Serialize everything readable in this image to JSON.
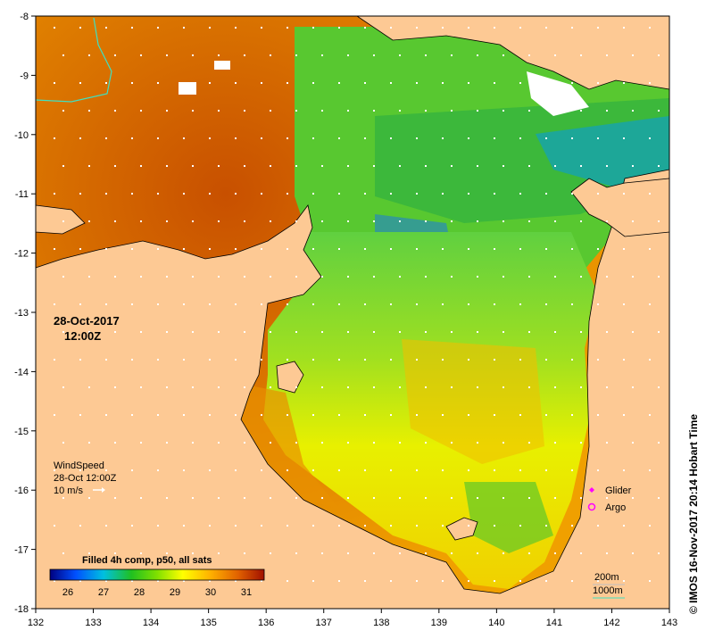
{
  "map": {
    "date": "28-Oct-2017",
    "time": "12:00Z",
    "x_ticks": [
      "132",
      "133",
      "134",
      "135",
      "136",
      "137",
      "138",
      "139",
      "140",
      "141",
      "142",
      "143"
    ],
    "y_ticks": [
      "-8",
      "-9",
      "-10",
      "-11",
      "-12",
      "-13",
      "-14",
      "-15",
      "-16",
      "-17",
      "-18"
    ],
    "lon_range": [
      132,
      143
    ],
    "lat_range": [
      -18,
      -8
    ],
    "credit": "© IMOS 16-Nov-2017 20:14 Hobart Time",
    "colors": {
      "land": "#fdc994",
      "land_outline": "#000000"
    }
  },
  "wind": {
    "title": "WindSpeed",
    "time": "28-Oct 12:00Z",
    "scale_label": "10 m/s"
  },
  "colorbar": {
    "title": "Filled 4h comp, p50, all sats",
    "labels": [
      "26",
      "27",
      "28",
      "29",
      "30",
      "31"
    ],
    "range": [
      25.5,
      31.5
    ],
    "colors": [
      "#000080",
      "#0050ff",
      "#00c0e0",
      "#20c020",
      "#80e000",
      "#ffff00",
      "#ffb000",
      "#e06000",
      "#a01000"
    ]
  },
  "legend": {
    "glider_label": "Glider",
    "argo_label": "Argo",
    "glider_color": "#ff00ff",
    "argo_color": "#ff00ff"
  },
  "isobaths": {
    "label_200": "200m",
    "label_1000": "1000m",
    "color_200": "#c0c0c0",
    "color_1000": "#40e0c0"
  }
}
